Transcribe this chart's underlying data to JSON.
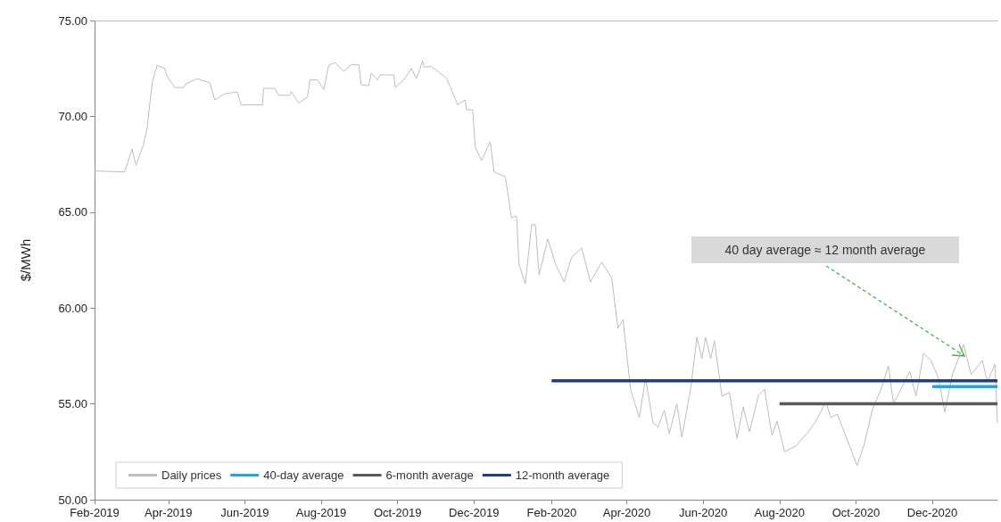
{
  "chart_data": {
    "type": "line",
    "ylabel": "$/MWh",
    "xlim": [
      "2019-02-01",
      "2021-01-22"
    ],
    "xticks": [
      {
        "value": "2019-02",
        "label": "Feb-2019"
      },
      {
        "value": "2019-04",
        "label": "Apr-2019"
      },
      {
        "value": "2019-06",
        "label": "Jun-2019"
      },
      {
        "value": "2019-08",
        "label": "Aug-2019"
      },
      {
        "value": "2019-10",
        "label": "Oct-2019"
      },
      {
        "value": "2019-12",
        "label": "Dec-2019"
      },
      {
        "value": "2020-02",
        "label": "Feb-2020"
      },
      {
        "value": "2020-04",
        "label": "Apr-2020"
      },
      {
        "value": "2020-06",
        "label": "Jun-2020"
      },
      {
        "value": "2020-08",
        "label": "Aug-2020"
      },
      {
        "value": "2020-10",
        "label": "Oct-2020"
      },
      {
        "value": "2020-12",
        "label": "Dec-2020"
      }
    ],
    "ylim": [
      50,
      75
    ],
    "yticks": [
      {
        "value": 50,
        "label": "50.00"
      },
      {
        "value": 55,
        "label": "55.00"
      },
      {
        "value": 60,
        "label": "60.00"
      },
      {
        "value": 65,
        "label": "65.00"
      },
      {
        "value": 70,
        "label": "70.00"
      },
      {
        "value": 75,
        "label": "75.00"
      }
    ],
    "grid": false,
    "legend": "bottom left",
    "marker": "none",
    "line_style": "solid",
    "series": [
      {
        "name": "Daily prices",
        "color": "#bdbdbd",
        "x": [
          "2019-02-01",
          "2019-02-25",
          "2019-03-03",
          "2019-03-06",
          "2019-03-12",
          "2019-03-15",
          "2019-03-17",
          "2019-03-19",
          "2019-03-23",
          "2019-03-29",
          "2019-03-31",
          "2019-04-06",
          "2019-04-13",
          "2019-04-15",
          "2019-04-24",
          "2019-05-04",
          "2019-05-08",
          "2019-05-16",
          "2019-05-26",
          "2019-05-29",
          "2019-06-15",
          "2019-06-16",
          "2019-06-25",
          "2019-06-28",
          "2019-07-07",
          "2019-07-08",
          "2019-07-14",
          "2019-07-21",
          "2019-07-23",
          "2019-07-29",
          "2019-08-03",
          "2019-08-07",
          "2019-08-12",
          "2019-08-19",
          "2019-08-25",
          "2019-08-31",
          "2019-09-02",
          "2019-09-08",
          "2019-09-10",
          "2019-09-15",
          "2019-09-17",
          "2019-09-28",
          "2019-09-29",
          "2019-10-06",
          "2019-10-12",
          "2019-10-16",
          "2019-10-21",
          "2019-10-22",
          "2019-10-28",
          "2019-11-09",
          "2019-11-18",
          "2019-11-24",
          "2019-11-25",
          "2019-11-30",
          "2019-12-02",
          "2019-12-07",
          "2019-12-14",
          "2019-12-17",
          "2019-12-26",
          "2019-12-31",
          "2020-01-04",
          "2020-01-06",
          "2020-01-11",
          "2020-01-16",
          "2020-01-19",
          "2020-01-22",
          "2020-01-29",
          "2020-02-04",
          "2020-02-11",
          "2020-02-17",
          "2020-02-25",
          "2020-03-03",
          "2020-03-12",
          "2020-03-20",
          "2020-03-25",
          "2020-03-29",
          "2020-04-04",
          "2020-04-11",
          "2020-04-16",
          "2020-04-22",
          "2020-04-26",
          "2020-05-01",
          "2020-05-05",
          "2020-05-11",
          "2020-05-15",
          "2020-05-22",
          "2020-05-27",
          "2020-05-31",
          "2020-06-03",
          "2020-06-07",
          "2020-06-10",
          "2020-06-16",
          "2020-06-22",
          "2020-06-28",
          "2020-07-03",
          "2020-07-08",
          "2020-07-15",
          "2020-07-20",
          "2020-07-26",
          "2020-07-30",
          "2020-08-05",
          "2020-08-14",
          "2020-08-24",
          "2020-08-30",
          "2020-09-07",
          "2020-09-11",
          "2020-09-16",
          "2020-09-26",
          "2020-10-02",
          "2020-10-08",
          "2020-10-14",
          "2020-10-21",
          "2020-10-27",
          "2020-10-31",
          "2020-11-06",
          "2020-11-13",
          "2020-11-18",
          "2020-11-24",
          "2020-11-30",
          "2020-12-06",
          "2020-12-11",
          "2020-12-17",
          "2020-12-26",
          "2021-01-01",
          "2021-01-10",
          "2021-01-14",
          "2021-01-20",
          "2021-01-22"
        ],
        "values": [
          67.15,
          67.1,
          68.3,
          67.45,
          68.5,
          69.4,
          70.6,
          71.75,
          72.67,
          72.5,
          72.07,
          71.5,
          71.5,
          71.7,
          71.97,
          71.75,
          70.86,
          71.18,
          71.27,
          70.6,
          70.6,
          71.46,
          71.46,
          71.1,
          71.1,
          71.3,
          70.7,
          71.0,
          71.9,
          71.9,
          71.4,
          72.67,
          72.8,
          72.35,
          72.7,
          72.7,
          71.65,
          71.6,
          72.25,
          71.9,
          72.16,
          72.16,
          71.5,
          71.9,
          72.5,
          71.97,
          72.9,
          72.58,
          72.6,
          72.0,
          70.6,
          70.86,
          70.34,
          70.34,
          68.4,
          67.7,
          68.67,
          67.1,
          66.85,
          64.7,
          64.8,
          62.25,
          61.27,
          64.34,
          64.34,
          61.73,
          63.6,
          62.3,
          61.36,
          62.66,
          63.13,
          61.36,
          62.4,
          61.55,
          58.94,
          59.4,
          55.77,
          54.28,
          56.33,
          54.0,
          53.8,
          54.66,
          53.45,
          55.0,
          53.26,
          55.77,
          58.47,
          57.36,
          58.47,
          57.36,
          58.3,
          55.4,
          55.6,
          53.2,
          54.84,
          53.54,
          55.4,
          55.77,
          53.35,
          54.1,
          52.5,
          52.8,
          53.54,
          54.1,
          55.1,
          54.28,
          54.47,
          52.8,
          51.77,
          52.98,
          54.66,
          55.77,
          56.98,
          55.0,
          55.77,
          56.7,
          55.4,
          57.64,
          57.26,
          56.33,
          54.56,
          56.52,
          58.1,
          56.52,
          57.26,
          56.14,
          57.07,
          54.0
        ]
      },
      {
        "name": "40-day average",
        "color": "#1ca8e0",
        "x": [
          "2020-12-01",
          "2021-01-22"
        ],
        "values": [
          55.9,
          55.9
        ]
      },
      {
        "name": "6-month average",
        "color": "#595959",
        "x": [
          "2020-08-01",
          "2021-01-22"
        ],
        "values": [
          55.0,
          55.0
        ]
      },
      {
        "name": "12-month average",
        "color": "#1f3e8a",
        "x": [
          "2020-02-01",
          "2021-01-22"
        ],
        "values": [
          56.2,
          56.2
        ]
      }
    ],
    "annotations": [
      {
        "text": "40 day average ≈ 12 month average",
        "x": "2020-12-28",
        "y": 57.4
      }
    ]
  }
}
